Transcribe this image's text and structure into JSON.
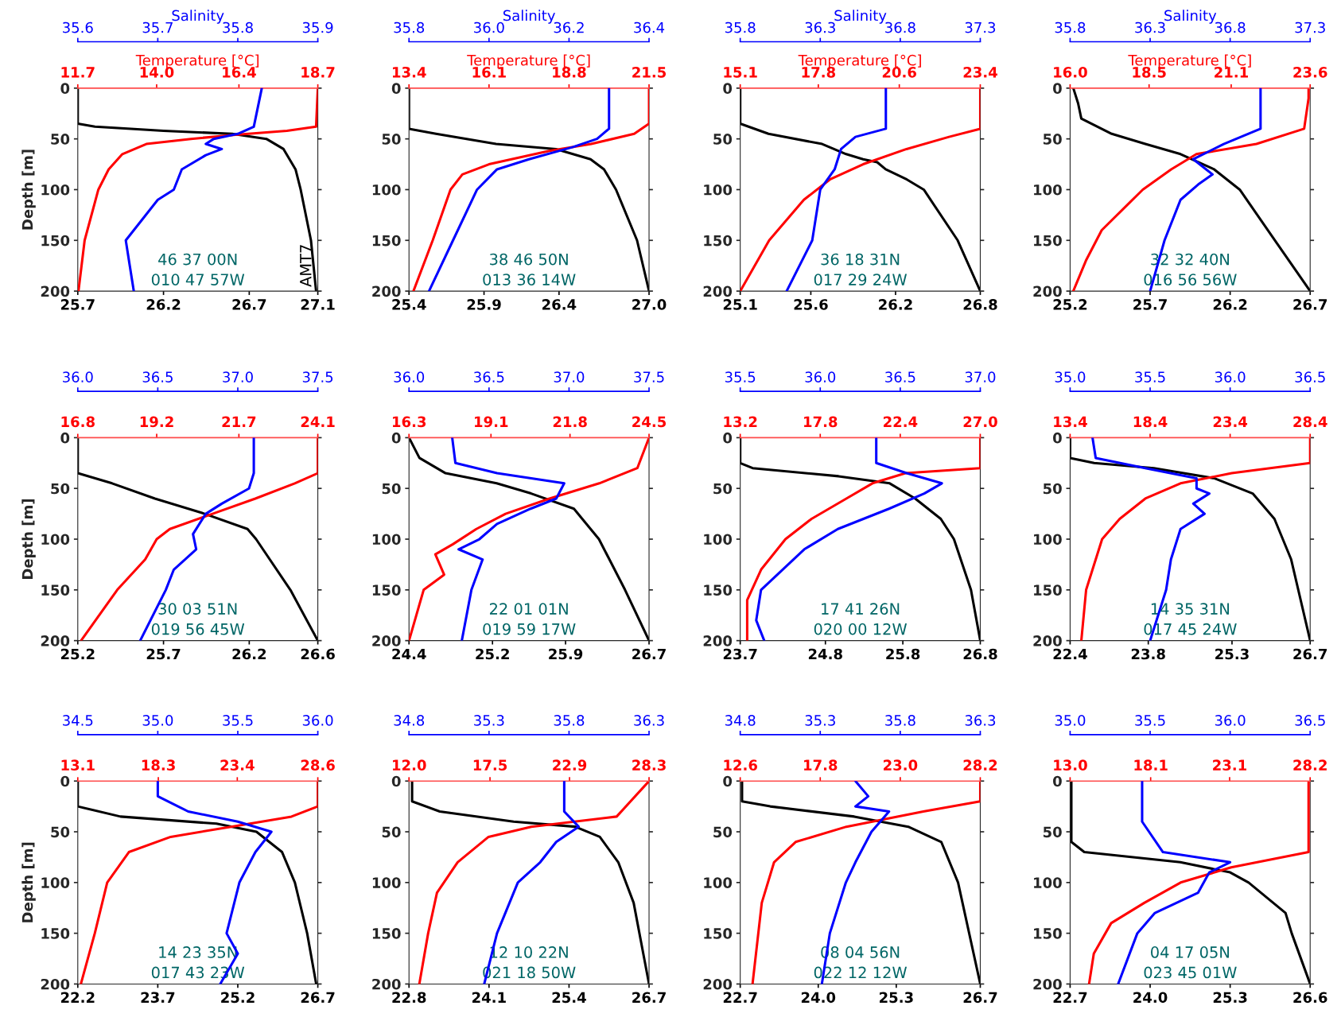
{
  "chart_data": [
    {
      "type": "line",
      "ylabel": "Depth [m]",
      "ylim": [
        200,
        0
      ],
      "yticks": [
        0,
        50,
        100,
        150,
        200
      ],
      "xlim": [
        25.7,
        27.1
      ],
      "xticks": [
        25.7,
        26.2,
        26.7,
        27.1
      ],
      "x2lim": [
        11.7,
        18.7
      ],
      "x2ticks": [
        11.7,
        {
          "value": 14.0,
          "label": "14.0"
        },
        16.4,
        18.7
      ],
      "x2label": "Temperature [°C]",
      "annotations": [
        "46 37 00N",
        "010 47 57W",
        "AMT7"
      ],
      "series": [
        {
          "color": "#000000",
          "x": [
            25.7,
            25.7,
            25.8,
            26.2,
            26.6,
            26.8,
            26.9,
            26.97,
            27.0,
            27.06,
            27.09
          ],
          "values": [
            0,
            35,
            38,
            42,
            45,
            50,
            60,
            80,
            100,
            150,
            200
          ]
        },
        {
          "axis": "x2",
          "color": "#ff0000",
          "x": [
            18.7,
            18.65,
            17.8,
            16.3,
            15.0,
            13.7,
            13.0,
            12.6,
            12.3,
            11.9,
            11.72
          ],
          "values": [
            0,
            38,
            42,
            46,
            50,
            55,
            65,
            80,
            100,
            150,
            200
          ]
        }
      ]
    },
    {
      "type": "line",
      "xlabel": "Salinity",
      "xlim": [
        35.6,
        35.9
      ],
      "xticks": [
        35.6,
        35.7,
        35.8,
        35.9
      ],
      "ylim": [
        200,
        0
      ],
      "tick_labels": "x",
      "series": [
        {
          "color": "#0000ff",
          "x": [
            35.83,
            35.82,
            35.8,
            35.77,
            35.76,
            35.78,
            35.76,
            35.73,
            35.72,
            35.7,
            35.68,
            35.66,
            35.665,
            35.67
          ],
          "values": [
            0,
            38,
            45,
            50,
            55,
            60,
            66,
            80,
            100,
            110,
            130,
            150,
            175,
            200
          ]
        }
      ]
    },
    {
      "type": "line",
      "ylim": [
        200,
        0
      ],
      "yticks": [
        0,
        50,
        100,
        150,
        200
      ],
      "xlim": [
        25.4,
        27.0
      ],
      "xticks": [
        25.4,
        25.9,
        26.4,
        {
          "value": 27.0,
          "label": "27.0"
        }
      ],
      "x2lim": [
        13.4,
        21.5
      ],
      "x2ticks": [
        13.4,
        16.1,
        18.8,
        21.5
      ],
      "x2label": "Temperature [°C]",
      "annotations": [
        "38 46 50N",
        "013 36 14W"
      ],
      "series": [
        {
          "color": "#000000",
          "x": [
            25.4,
            25.4,
            25.58,
            25.98,
            26.38,
            26.61,
            26.7,
            26.78,
            26.92,
            27.0
          ],
          "values": [
            0,
            40,
            45,
            55,
            60,
            70,
            80,
            100,
            150,
            200
          ]
        },
        {
          "axis": "x2",
          "color": "#ff0000",
          "x": [
            21.5,
            21.5,
            21.0,
            19.55,
            18.1,
            16.1,
            15.2,
            14.8,
            14.2,
            13.55
          ],
          "values": [
            0,
            35,
            45,
            55,
            62,
            75,
            85,
            100,
            150,
            200
          ]
        }
      ]
    },
    {
      "type": "line",
      "xlabel": "Salinity",
      "xlim": [
        35.8,
        36.4
      ],
      "xticks": [
        35.8,
        {
          "value": 36.0,
          "label": "36.0"
        },
        36.2,
        36.4
      ],
      "ylim": [
        200,
        0
      ],
      "tick_labels": "x",
      "series": [
        {
          "color": "#0000ff",
          "x": [
            36.3,
            36.3,
            36.27,
            36.21,
            36.1,
            36.02,
            35.97,
            35.91,
            35.85
          ],
          "values": [
            0,
            40,
            50,
            58,
            70,
            80,
            100,
            150,
            200
          ]
        }
      ]
    },
    {
      "type": "line",
      "ylim": [
        200,
        0
      ],
      "yticks": [
        0,
        50,
        100,
        150,
        200
      ],
      "xlim": [
        25.1,
        26.8
      ],
      "xticks": [
        25.1,
        25.6,
        26.2,
        26.8
      ],
      "x2lim": [
        15.1,
        23.4
      ],
      "x2ticks": [
        15.1,
        17.8,
        20.6,
        23.4
      ],
      "x2label": "Temperature [°C]",
      "annotations": [
        "36 18 31N",
        "017 29 24W"
      ],
      "series": [
        {
          "color": "#000000",
          "x": [
            25.1,
            25.1,
            25.3,
            25.68,
            25.85,
            25.97,
            26.07,
            26.13,
            26.28,
            26.4,
            26.64,
            26.8
          ],
          "values": [
            0,
            35,
            45,
            55,
            65,
            70,
            73,
            80,
            90,
            100,
            150,
            200
          ]
        },
        {
          "axis": "x2",
          "color": "#ff0000",
          "x": [
            23.4,
            23.4,
            22.32,
            20.85,
            19.35,
            18.2,
            17.3,
            16.1,
            15.1
          ],
          "values": [
            0,
            40,
            48,
            60,
            75,
            90,
            110,
            150,
            200
          ]
        }
      ]
    },
    {
      "type": "line",
      "xlabel": "Salinity",
      "xlim": [
        35.8,
        37.3
      ],
      "xticks": [
        35.8,
        36.3,
        36.8,
        37.3
      ],
      "ylim": [
        200,
        0
      ],
      "tick_labels": "x",
      "series": [
        {
          "color": "#0000ff",
          "x": [
            36.71,
            36.71,
            36.52,
            36.43,
            36.39,
            36.3,
            36.25,
            36.09
          ],
          "values": [
            0,
            40,
            48,
            60,
            80,
            100,
            150,
            200
          ]
        }
      ]
    },
    {
      "type": "line",
      "ylim": [
        200,
        0
      ],
      "yticks": [
        0,
        50,
        100,
        150,
        200
      ],
      "xlim": [
        25.2,
        26.7
      ],
      "xticks": [
        25.2,
        25.7,
        26.2,
        26.7
      ],
      "x2lim": [
        16.0,
        23.6
      ],
      "x2ticks": [
        {
          "value": 16.0,
          "label": "16.0"
        },
        18.5,
        21.1,
        23.6
      ],
      "x2label": "Temperature [°C]",
      "annotations": [
        "32 32 40N",
        "016 56 56W"
      ],
      "series": [
        {
          "color": "#000000",
          "x": [
            25.22,
            25.25,
            25.27,
            25.46,
            25.67,
            25.89,
            26.1,
            26.26,
            26.48,
            26.7
          ],
          "values": [
            0,
            15,
            30,
            45,
            55,
            65,
            80,
            100,
            150,
            200
          ]
        },
        {
          "axis": "x2",
          "color": "#ff0000",
          "x": [
            23.55,
            23.55,
            23.41,
            21.9,
            20.0,
            19.2,
            18.3,
            17.0,
            16.5,
            16.1
          ],
          "values": [
            0,
            10,
            40,
            55,
            65,
            80,
            100,
            140,
            170,
            200
          ]
        }
      ]
    },
    {
      "type": "line",
      "xlabel": "Salinity",
      "xlim": [
        35.8,
        37.3
      ],
      "xticks": [
        35.8,
        36.3,
        36.8,
        37.3
      ],
      "ylim": [
        200,
        0
      ],
      "tick_labels": "x",
      "series": [
        {
          "color": "#0000ff",
          "x": [
            36.99,
            36.99,
            36.76,
            36.57,
            36.65,
            36.69,
            36.6,
            36.49,
            36.39,
            36.3
          ],
          "values": [
            0,
            40,
            55,
            70,
            80,
            85,
            95,
            110,
            150,
            200
          ]
        }
      ]
    },
    {
      "type": "line",
      "ylabel": "Depth [m]",
      "ylim": [
        200,
        0
      ],
      "yticks": [
        0,
        50,
        100,
        150,
        200
      ],
      "xlim": [
        25.2,
        26.6
      ],
      "xticks": [
        25.2,
        25.7,
        26.2,
        26.6
      ],
      "x2lim": [
        16.8,
        24.1
      ],
      "x2ticks": [
        16.8,
        19.2,
        21.7,
        24.1
      ],
      "annotations": [
        "30 03 51N",
        "019 56 45W"
      ],
      "series": [
        {
          "color": "#000000",
          "x": [
            25.2,
            25.2,
            25.4,
            25.65,
            25.94,
            26.19,
            26.24,
            26.44,
            26.6
          ],
          "values": [
            0,
            35,
            45,
            60,
            75,
            90,
            100,
            150,
            200
          ]
        },
        {
          "axis": "x2",
          "color": "#ff0000",
          "x": [
            24.1,
            24.1,
            23.4,
            22.2,
            20.9,
            19.6,
            19.2,
            18.85,
            18.0,
            16.9
          ],
          "values": [
            0,
            35,
            45,
            60,
            75,
            90,
            100,
            120,
            150,
            200
          ]
        }
      ]
    },
    {
      "type": "line",
      "xlim": [
        36.0,
        37.5
      ],
      "xticks": [
        {
          "value": 36.0,
          "label": "36.0"
        },
        36.5,
        {
          "value": 37.0,
          "label": "37.0"
        },
        37.5
      ],
      "ylim": [
        200,
        0
      ],
      "tick_labels": "x",
      "series": [
        {
          "color": "#0000ff",
          "x": [
            37.1,
            37.1,
            37.07,
            36.9,
            36.8,
            36.72,
            36.74,
            36.6,
            36.55,
            36.39
          ],
          "values": [
            0,
            35,
            50,
            65,
            75,
            95,
            110,
            130,
            150,
            200
          ]
        }
      ]
    },
    {
      "type": "line",
      "ylim": [
        200,
        0
      ],
      "yticks": [
        0,
        50,
        100,
        150,
        200
      ],
      "xlim": [
        24.4,
        26.7
      ],
      "xticks": [
        24.4,
        25.2,
        25.9,
        26.7
      ],
      "x2lim": [
        16.3,
        24.5
      ],
      "x2ticks": [
        16.3,
        19.1,
        21.8,
        24.5
      ],
      "annotations": [
        "22 01 01N",
        "019 59 17W"
      ],
      "series": [
        {
          "color": "#000000",
          "x": [
            24.4,
            24.5,
            24.75,
            25.24,
            25.57,
            25.98,
            26.22,
            26.47,
            26.7
          ],
          "values": [
            0,
            20,
            35,
            45,
            55,
            70,
            100,
            150,
            200
          ]
        },
        {
          "axis": "x2",
          "color": "#ff0000",
          "x": [
            24.5,
            24.1,
            22.8,
            21.1,
            19.6,
            18.6,
            17.8,
            17.2,
            17.5,
            16.8,
            16.3
          ],
          "values": [
            0,
            30,
            45,
            60,
            75,
            90,
            105,
            115,
            135,
            150,
            200
          ]
        }
      ]
    },
    {
      "type": "line",
      "xlim": [
        36.0,
        37.5
      ],
      "xticks": [
        {
          "value": 36.0,
          "label": "36.0"
        },
        36.5,
        {
          "value": 37.0,
          "label": "37.0"
        },
        37.5
      ],
      "ylim": [
        200,
        0
      ],
      "tick_labels": "x",
      "series": [
        {
          "color": "#0000ff",
          "x": [
            36.27,
            36.29,
            36.55,
            36.97,
            36.92,
            36.76,
            36.55,
            36.44,
            36.31,
            36.46,
            36.39,
            36.33
          ],
          "values": [
            0,
            25,
            35,
            45,
            60,
            70,
            85,
            100,
            110,
            120,
            150,
            200
          ]
        }
      ]
    },
    {
      "type": "line",
      "ylim": [
        200,
        0
      ],
      "yticks": [
        0,
        50,
        100,
        150,
        200
      ],
      "xlim": [
        23.7,
        26.8
      ],
      "xticks": [
        23.7,
        24.8,
        25.8,
        26.8
      ],
      "x2lim": [
        13.2,
        27.0
      ],
      "x2ticks": [
        13.2,
        17.8,
        22.4,
        {
          "value": 27.0,
          "label": "27.0"
        }
      ],
      "annotations": [
        "17 41 26N",
        "020 00 12W"
      ],
      "series": [
        {
          "color": "#000000",
          "x": [
            23.7,
            23.7,
            23.86,
            24.97,
            25.63,
            25.96,
            26.29,
            26.46,
            26.68,
            26.8
          ],
          "values": [
            0,
            25,
            30,
            38,
            45,
            60,
            80,
            100,
            150,
            200
          ]
        },
        {
          "axis": "x2",
          "color": "#ff0000",
          "x": [
            27.0,
            27.0,
            22.7,
            20.8,
            19.3,
            17.3,
            15.8,
            14.4,
            13.6,
            13.6
          ],
          "values": [
            0,
            30,
            35,
            45,
            60,
            80,
            100,
            130,
            160,
            200
          ]
        }
      ]
    },
    {
      "type": "line",
      "xlim": [
        35.5,
        37.0
      ],
      "xticks": [
        35.5,
        {
          "value": 36.0,
          "label": "36.0"
        },
        36.5,
        {
          "value": 37.0,
          "label": "37.0"
        }
      ],
      "ylim": [
        200,
        0
      ],
      "tick_labels": "x",
      "series": [
        {
          "color": "#0000ff",
          "x": [
            36.35,
            36.35,
            36.54,
            36.76,
            36.65,
            36.43,
            36.11,
            35.9,
            35.63,
            35.6,
            35.65
          ],
          "values": [
            0,
            25,
            35,
            45,
            55,
            70,
            90,
            110,
            150,
            180,
            200
          ]
        }
      ]
    },
    {
      "type": "line",
      "ylim": [
        200,
        0
      ],
      "yticks": [
        0,
        50,
        100,
        150,
        200
      ],
      "xlim": [
        22.4,
        26.7
      ],
      "xticks": [
        22.4,
        23.8,
        25.3,
        26.7
      ],
      "x2lim": [
        13.4,
        28.4
      ],
      "x2ticks": [
        13.4,
        18.4,
        23.4,
        28.4
      ],
      "annotations": [
        "14 35 31N",
        "017 45 24W"
      ],
      "series": [
        {
          "color": "#000000",
          "x": [
            22.4,
            22.4,
            22.83,
            23.9,
            24.98,
            25.67,
            26.06,
            26.36,
            26.7
          ],
          "values": [
            0,
            20,
            25,
            30,
            40,
            55,
            80,
            120,
            200
          ]
        },
        {
          "axis": "x2",
          "color": "#ff0000",
          "x": [
            28.4,
            28.4,
            23.5,
            20.3,
            18.1,
            16.5,
            15.4,
            14.4,
            14.1
          ],
          "values": [
            0,
            25,
            35,
            45,
            60,
            80,
            100,
            150,
            200
          ]
        }
      ]
    },
    {
      "type": "line",
      "xlim": [
        35.0,
        36.5
      ],
      "xticks": [
        {
          "value": 35.0,
          "label": "35.0"
        },
        35.5,
        {
          "value": 36.0,
          "label": "36.0"
        },
        36.5
      ],
      "ylim": [
        200,
        0
      ],
      "tick_labels": "x",
      "series": [
        {
          "color": "#0000ff",
          "x": [
            35.14,
            35.16,
            35.47,
            35.79,
            35.79,
            35.87,
            35.77,
            35.84,
            35.69,
            35.63,
            35.6,
            35.5
          ],
          "values": [
            0,
            20,
            30,
            40,
            50,
            55,
            65,
            75,
            90,
            120,
            150,
            200
          ]
        }
      ]
    },
    {
      "type": "line",
      "ylabel": "Depth [m]",
      "ylim": [
        200,
        0
      ],
      "yticks": [
        0,
        50,
        100,
        150,
        200
      ],
      "xlim": [
        22.2,
        26.7
      ],
      "xticks": [
        22.2,
        23.7,
        25.2,
        26.7
      ],
      "x2lim": [
        13.1,
        28.6
      ],
      "x2ticks": [
        13.1,
        18.3,
        23.4,
        28.6
      ],
      "annotations": [
        "14 23 35N",
        "017 43 23W"
      ],
      "series": [
        {
          "color": "#000000",
          "x": [
            22.2,
            22.2,
            23.0,
            24.8,
            25.55,
            26.03,
            26.27,
            26.5,
            26.67
          ],
          "values": [
            0,
            25,
            35,
            42,
            50,
            70,
            100,
            150,
            200
          ]
        },
        {
          "axis": "x2",
          "color": "#ff0000",
          "x": [
            28.6,
            28.6,
            26.9,
            23.0,
            19.1,
            16.4,
            15.0,
            14.2,
            13.3
          ],
          "values": [
            0,
            25,
            35,
            45,
            55,
            70,
            100,
            150,
            200
          ]
        }
      ]
    },
    {
      "type": "line",
      "xlim": [
        34.5,
        36.0
      ],
      "xticks": [
        34.5,
        {
          "value": 35.0,
          "label": "35.0"
        },
        35.5,
        {
          "value": 36.0,
          "label": "36.0"
        }
      ],
      "ylim": [
        200,
        0
      ],
      "tick_labels": "x",
      "series": [
        {
          "color": "#0000ff",
          "x": [
            35.0,
            35.0,
            35.19,
            35.5,
            35.71,
            35.61,
            35.51,
            35.43,
            35.5,
            35.39
          ],
          "values": [
            0,
            15,
            30,
            40,
            50,
            70,
            100,
            150,
            170,
            200
          ]
        }
      ]
    },
    {
      "type": "line",
      "ylim": [
        200,
        0
      ],
      "yticks": [
        0,
        50,
        100,
        150,
        200
      ],
      "xlim": [
        22.8,
        26.7
      ],
      "xticks": [
        22.8,
        24.1,
        25.4,
        26.7
      ],
      "x2lim": [
        12.0,
        28.3
      ],
      "x2ticks": [
        {
          "value": 12.0,
          "label": "12.0"
        },
        17.5,
        22.9,
        28.3
      ],
      "annotations": [
        "12 10 22N",
        "021 18 50W"
      ],
      "series": [
        {
          "color": "#000000",
          "x": [
            22.85,
            22.85,
            23.3,
            24.5,
            25.5,
            25.9,
            26.2,
            26.45,
            26.7
          ],
          "values": [
            0,
            20,
            30,
            40,
            45,
            55,
            80,
            120,
            200
          ]
        },
        {
          "axis": "x2",
          "color": "#ff0000",
          "x": [
            28.3,
            26.1,
            20.3,
            17.4,
            15.3,
            13.9,
            13.3,
            12.7
          ],
          "values": [
            0,
            35,
            45,
            55,
            80,
            110,
            150,
            200
          ]
        }
      ]
    },
    {
      "type": "line",
      "xlim": [
        34.8,
        36.3
      ],
      "xticks": [
        34.8,
        35.3,
        35.8,
        36.3
      ],
      "ylim": [
        200,
        0
      ],
      "tick_labels": "x",
      "series": [
        {
          "color": "#0000ff",
          "x": [
            35.77,
            35.77,
            35.86,
            35.72,
            35.62,
            35.48,
            35.35,
            35.27
          ],
          "values": [
            0,
            30,
            45,
            60,
            80,
            100,
            150,
            200
          ]
        }
      ]
    },
    {
      "type": "line",
      "ylim": [
        200,
        0
      ],
      "yticks": [
        0,
        50,
        100,
        150,
        200
      ],
      "xlim": [
        22.7,
        26.7
      ],
      "xticks": [
        22.7,
        {
          "value": 24.0,
          "label": "24.0"
        },
        25.3,
        26.7
      ],
      "x2lim": [
        12.6,
        28.2
      ],
      "x2ticks": [
        12.6,
        17.8,
        {
          "value": 23.0,
          "label": "23.0"
        },
        28.2
      ],
      "annotations": [
        "08 04 56N",
        "022 12 12W"
      ],
      "series": [
        {
          "color": "#000000",
          "x": [
            22.73,
            22.73,
            23.2,
            24.6,
            25.5,
            26.05,
            26.33,
            26.7
          ],
          "values": [
            0,
            20,
            25,
            35,
            45,
            60,
            100,
            200
          ]
        },
        {
          "axis": "x2",
          "color": "#ff0000",
          "x": [
            28.2,
            28.2,
            24.5,
            19.5,
            16.2,
            14.8,
            14.0,
            13.4
          ],
          "values": [
            0,
            20,
            30,
            45,
            60,
            80,
            120,
            200
          ]
        }
      ]
    },
    {
      "type": "line",
      "xlim": [
        34.8,
        36.3
      ],
      "xticks": [
        34.8,
        35.3,
        35.8,
        36.3
      ],
      "ylim": [
        200,
        0
      ],
      "tick_labels": "x",
      "series": [
        {
          "color": "#0000ff",
          "x": [
            35.52,
            35.6,
            35.52,
            35.73,
            35.62,
            35.52,
            35.46,
            35.36,
            35.31
          ],
          "values": [
            0,
            15,
            25,
            30,
            50,
            80,
            100,
            150,
            200
          ]
        }
      ]
    },
    {
      "type": "line",
      "ylim": [
        200,
        0
      ],
      "yticks": [
        0,
        50,
        100,
        150,
        200
      ],
      "xlim": [
        22.7,
        26.6
      ],
      "xticks": [
        22.7,
        {
          "value": 24.0,
          "label": "24.0"
        },
        25.3,
        26.6
      ],
      "x2lim": [
        13.0,
        28.2
      ],
      "x2ticks": [
        {
          "value": 13.0,
          "label": "13.0"
        },
        18.1,
        23.1,
        28.2
      ],
      "annotations": [
        "04 17 05N",
        "023 45 01W"
      ],
      "series": [
        {
          "color": "#000000",
          "x": [
            22.72,
            22.72,
            22.93,
            24.49,
            25.3,
            25.6,
            26.2,
            26.3,
            26.6
          ],
          "values": [
            0,
            60,
            70,
            80,
            90,
            100,
            130,
            150,
            200
          ]
        },
        {
          "axis": "x2",
          "color": "#ff0000",
          "x": [
            28.1,
            28.1,
            23.2,
            20.0,
            17.7,
            15.6,
            14.5,
            14.2
          ],
          "values": [
            0,
            70,
            85,
            100,
            120,
            140,
            170,
            200
          ]
        }
      ]
    },
    {
      "type": "line",
      "xlim": [
        35.0,
        36.5
      ],
      "xticks": [
        {
          "value": 35.0,
          "label": "35.0"
        },
        35.5,
        {
          "value": 36.0,
          "label": "36.0"
        },
        36.5
      ],
      "ylim": [
        200,
        0
      ],
      "tick_labels": "x",
      "series": [
        {
          "color": "#0000ff",
          "x": [
            35.45,
            35.45,
            35.58,
            36.0,
            35.87,
            35.8,
            35.53,
            35.42,
            35.3
          ],
          "values": [
            0,
            40,
            70,
            80,
            90,
            110,
            130,
            150,
            200
          ]
        }
      ]
    }
  ]
}
